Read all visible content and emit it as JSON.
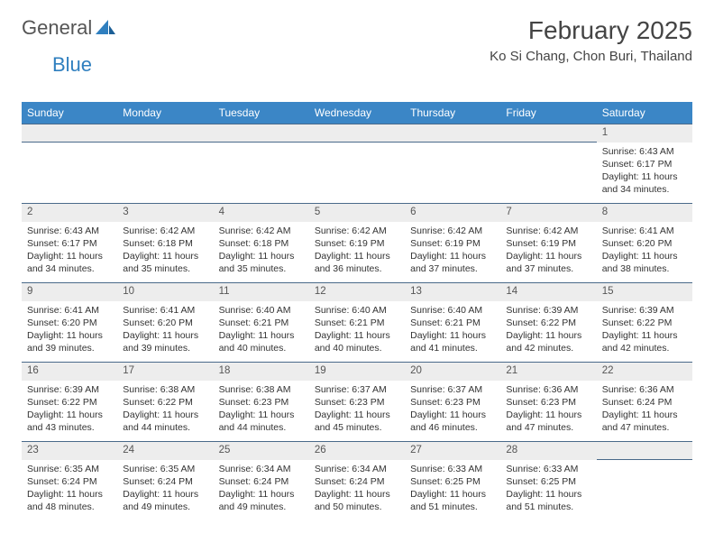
{
  "brand": {
    "part1": "General",
    "part2": "Blue"
  },
  "title": "February 2025",
  "location": "Ko Si Chang, Chon Buri, Thailand",
  "colors": {
    "header_bg": "#3b86c6",
    "header_text": "#ffffff",
    "daynum_bg": "#ededed",
    "row_border": "#4a6a8a",
    "text": "#333333",
    "brand_gray": "#555555",
    "brand_blue": "#2f7fbf"
  },
  "typography": {
    "title_fontsize": 28,
    "location_fontsize": 15,
    "header_cell_fontsize": 12,
    "daynum_fontsize": 11.5,
    "body_fontsize": 10.5
  },
  "day_headers": [
    "Sunday",
    "Monday",
    "Tuesday",
    "Wednesday",
    "Thursday",
    "Friday",
    "Saturday"
  ],
  "weeks": [
    [
      null,
      null,
      null,
      null,
      null,
      null,
      {
        "n": "1",
        "sunrise": "Sunrise: 6:43 AM",
        "sunset": "Sunset: 6:17 PM",
        "daylight": "Daylight: 11 hours and 34 minutes."
      }
    ],
    [
      {
        "n": "2",
        "sunrise": "Sunrise: 6:43 AM",
        "sunset": "Sunset: 6:17 PM",
        "daylight": "Daylight: 11 hours and 34 minutes."
      },
      {
        "n": "3",
        "sunrise": "Sunrise: 6:42 AM",
        "sunset": "Sunset: 6:18 PM",
        "daylight": "Daylight: 11 hours and 35 minutes."
      },
      {
        "n": "4",
        "sunrise": "Sunrise: 6:42 AM",
        "sunset": "Sunset: 6:18 PM",
        "daylight": "Daylight: 11 hours and 35 minutes."
      },
      {
        "n": "5",
        "sunrise": "Sunrise: 6:42 AM",
        "sunset": "Sunset: 6:19 PM",
        "daylight": "Daylight: 11 hours and 36 minutes."
      },
      {
        "n": "6",
        "sunrise": "Sunrise: 6:42 AM",
        "sunset": "Sunset: 6:19 PM",
        "daylight": "Daylight: 11 hours and 37 minutes."
      },
      {
        "n": "7",
        "sunrise": "Sunrise: 6:42 AM",
        "sunset": "Sunset: 6:19 PM",
        "daylight": "Daylight: 11 hours and 37 minutes."
      },
      {
        "n": "8",
        "sunrise": "Sunrise: 6:41 AM",
        "sunset": "Sunset: 6:20 PM",
        "daylight": "Daylight: 11 hours and 38 minutes."
      }
    ],
    [
      {
        "n": "9",
        "sunrise": "Sunrise: 6:41 AM",
        "sunset": "Sunset: 6:20 PM",
        "daylight": "Daylight: 11 hours and 39 minutes."
      },
      {
        "n": "10",
        "sunrise": "Sunrise: 6:41 AM",
        "sunset": "Sunset: 6:20 PM",
        "daylight": "Daylight: 11 hours and 39 minutes."
      },
      {
        "n": "11",
        "sunrise": "Sunrise: 6:40 AM",
        "sunset": "Sunset: 6:21 PM",
        "daylight": "Daylight: 11 hours and 40 minutes."
      },
      {
        "n": "12",
        "sunrise": "Sunrise: 6:40 AM",
        "sunset": "Sunset: 6:21 PM",
        "daylight": "Daylight: 11 hours and 40 minutes."
      },
      {
        "n": "13",
        "sunrise": "Sunrise: 6:40 AM",
        "sunset": "Sunset: 6:21 PM",
        "daylight": "Daylight: 11 hours and 41 minutes."
      },
      {
        "n": "14",
        "sunrise": "Sunrise: 6:39 AM",
        "sunset": "Sunset: 6:22 PM",
        "daylight": "Daylight: 11 hours and 42 minutes."
      },
      {
        "n": "15",
        "sunrise": "Sunrise: 6:39 AM",
        "sunset": "Sunset: 6:22 PM",
        "daylight": "Daylight: 11 hours and 42 minutes."
      }
    ],
    [
      {
        "n": "16",
        "sunrise": "Sunrise: 6:39 AM",
        "sunset": "Sunset: 6:22 PM",
        "daylight": "Daylight: 11 hours and 43 minutes."
      },
      {
        "n": "17",
        "sunrise": "Sunrise: 6:38 AM",
        "sunset": "Sunset: 6:22 PM",
        "daylight": "Daylight: 11 hours and 44 minutes."
      },
      {
        "n": "18",
        "sunrise": "Sunrise: 6:38 AM",
        "sunset": "Sunset: 6:23 PM",
        "daylight": "Daylight: 11 hours and 44 minutes."
      },
      {
        "n": "19",
        "sunrise": "Sunrise: 6:37 AM",
        "sunset": "Sunset: 6:23 PM",
        "daylight": "Daylight: 11 hours and 45 minutes."
      },
      {
        "n": "20",
        "sunrise": "Sunrise: 6:37 AM",
        "sunset": "Sunset: 6:23 PM",
        "daylight": "Daylight: 11 hours and 46 minutes."
      },
      {
        "n": "21",
        "sunrise": "Sunrise: 6:36 AM",
        "sunset": "Sunset: 6:23 PM",
        "daylight": "Daylight: 11 hours and 47 minutes."
      },
      {
        "n": "22",
        "sunrise": "Sunrise: 6:36 AM",
        "sunset": "Sunset: 6:24 PM",
        "daylight": "Daylight: 11 hours and 47 minutes."
      }
    ],
    [
      {
        "n": "23",
        "sunrise": "Sunrise: 6:35 AM",
        "sunset": "Sunset: 6:24 PM",
        "daylight": "Daylight: 11 hours and 48 minutes."
      },
      {
        "n": "24",
        "sunrise": "Sunrise: 6:35 AM",
        "sunset": "Sunset: 6:24 PM",
        "daylight": "Daylight: 11 hours and 49 minutes."
      },
      {
        "n": "25",
        "sunrise": "Sunrise: 6:34 AM",
        "sunset": "Sunset: 6:24 PM",
        "daylight": "Daylight: 11 hours and 49 minutes."
      },
      {
        "n": "26",
        "sunrise": "Sunrise: 6:34 AM",
        "sunset": "Sunset: 6:24 PM",
        "daylight": "Daylight: 11 hours and 50 minutes."
      },
      {
        "n": "27",
        "sunrise": "Sunrise: 6:33 AM",
        "sunset": "Sunset: 6:25 PM",
        "daylight": "Daylight: 11 hours and 51 minutes."
      },
      {
        "n": "28",
        "sunrise": "Sunrise: 6:33 AM",
        "sunset": "Sunset: 6:25 PM",
        "daylight": "Daylight: 11 hours and 51 minutes."
      },
      null
    ]
  ]
}
